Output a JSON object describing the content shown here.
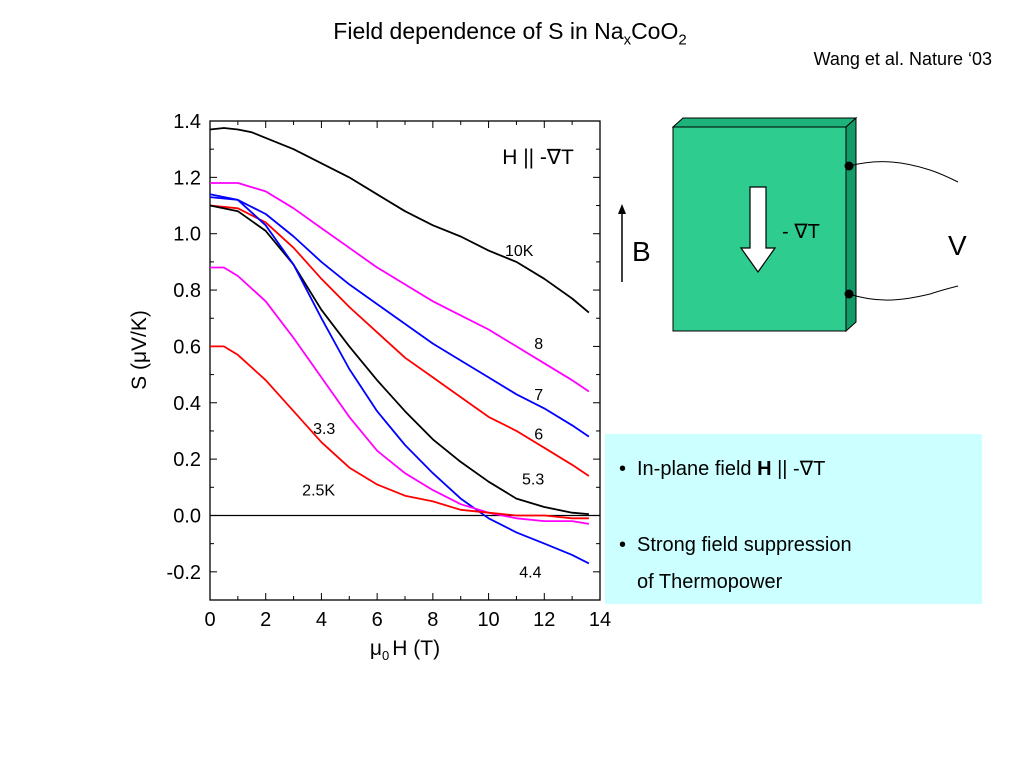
{
  "title": {
    "main": "Field dependence of S in Na",
    "sub_x": "x",
    "mid": "CoO",
    "sub_2": "2"
  },
  "citation": "Wang et al. Nature ‘03",
  "notes": [
    {
      "bullet": "•",
      "text": "In-plane field ",
      "bold": "H",
      "rest": " || -∇T"
    },
    {
      "bullet": "•",
      "text": "Strong field suppression",
      "continuation": "of Thermopower"
    }
  ],
  "diagram": {
    "gradient_label": "- ∇T",
    "field_label": "B",
    "voltage_label": "V",
    "crystal_color": "#2ecc8f",
    "arrow_fill": "#ffffff"
  },
  "chart_data": {
    "type": "line",
    "inset_text": "H || -∇T",
    "xlabel_mu": "μ",
    "xlabel_sub": "0",
    "xlabel_rest": "H (T)",
    "ylabel": "S (μV/K)",
    "xlim": [
      0,
      14
    ],
    "ylim": [
      -0.3,
      1.4
    ],
    "xticks": [
      0,
      2,
      4,
      6,
      8,
      10,
      12,
      14
    ],
    "xtick_labels": [
      "0",
      "2",
      "4",
      "6",
      "8",
      "10",
      "12",
      "14"
    ],
    "yticks": [
      -0.2,
      0.0,
      0.2,
      0.4,
      0.6,
      0.8,
      1.0,
      1.2,
      1.4
    ],
    "ytick_labels": [
      "-0.2",
      "0.0",
      "0.2",
      "0.4",
      "0.6",
      "0.8",
      "1.0",
      "1.2",
      "1.4"
    ],
    "zero_line": 0.0,
    "series": [
      {
        "name": "10K",
        "color": "#000000",
        "label_at": [
          11.1,
          0.92
        ],
        "x": [
          0,
          0.5,
          1,
          1.5,
          2,
          3,
          4,
          5,
          6,
          7,
          8,
          9,
          10,
          11,
          12,
          13,
          13.6
        ],
        "y": [
          1.37,
          1.375,
          1.37,
          1.36,
          1.34,
          1.3,
          1.25,
          1.2,
          1.14,
          1.08,
          1.03,
          0.99,
          0.94,
          0.9,
          0.84,
          0.77,
          0.72
        ]
      },
      {
        "name": "8",
        "color": "#ff00ff",
        "label_at": [
          11.8,
          0.59
        ],
        "x": [
          0,
          1,
          2,
          3,
          4,
          5,
          6,
          7,
          8,
          9,
          10,
          11,
          12,
          13,
          13.6
        ],
        "y": [
          1.18,
          1.18,
          1.15,
          1.09,
          1.02,
          0.95,
          0.88,
          0.82,
          0.76,
          0.71,
          0.66,
          0.6,
          0.54,
          0.48,
          0.44
        ]
      },
      {
        "name": "7",
        "color": "#0000ff",
        "label_at": [
          11.8,
          0.41
        ],
        "x": [
          0,
          1,
          2,
          3,
          4,
          5,
          6,
          7,
          8,
          9,
          10,
          11,
          12,
          13,
          13.6
        ],
        "y": [
          1.13,
          1.12,
          1.07,
          0.99,
          0.9,
          0.82,
          0.75,
          0.68,
          0.61,
          0.55,
          0.49,
          0.43,
          0.38,
          0.32,
          0.28
        ]
      },
      {
        "name": "6",
        "color": "#ff0000",
        "label_at": [
          11.8,
          0.27
        ],
        "x": [
          0,
          1,
          2,
          3,
          4,
          5,
          6,
          7,
          8,
          9,
          10,
          11,
          12,
          13,
          13.6
        ],
        "y": [
          1.1,
          1.09,
          1.04,
          0.95,
          0.84,
          0.74,
          0.65,
          0.56,
          0.49,
          0.42,
          0.35,
          0.3,
          0.24,
          0.18,
          0.14
        ]
      },
      {
        "name": "5.3",
        "color": "#000000",
        "label_at": [
          11.6,
          0.11
        ],
        "x": [
          0,
          1,
          2,
          3,
          4,
          5,
          6,
          7,
          8,
          9,
          10,
          11,
          12,
          13,
          13.6
        ],
        "y": [
          1.1,
          1.08,
          1.01,
          0.89,
          0.73,
          0.6,
          0.48,
          0.37,
          0.27,
          0.19,
          0.12,
          0.06,
          0.03,
          0.01,
          0.005
        ]
      },
      {
        "name": "4.4",
        "color": "#0000ff",
        "label_at": [
          11.5,
          -0.22
        ],
        "x": [
          0,
          1,
          2,
          3,
          4,
          5,
          6,
          7,
          8,
          9,
          10,
          11,
          12,
          13,
          13.6
        ],
        "y": [
          1.14,
          1.12,
          1.03,
          0.89,
          0.7,
          0.52,
          0.37,
          0.25,
          0.15,
          0.06,
          -0.01,
          -0.06,
          -0.1,
          -0.14,
          -0.17
        ]
      },
      {
        "name": "3.3",
        "color": "#ff00ff",
        "label_at": [
          4.1,
          0.29
        ],
        "x": [
          0,
          0.5,
          1,
          2,
          3,
          4,
          5,
          6,
          7,
          8,
          9,
          10,
          11,
          12,
          13,
          13.6
        ],
        "y": [
          0.88,
          0.88,
          0.85,
          0.76,
          0.63,
          0.49,
          0.35,
          0.23,
          0.15,
          0.09,
          0.04,
          0.01,
          -0.01,
          -0.02,
          -0.02,
          -0.03
        ]
      },
      {
        "name": "2.5K",
        "color": "#ff0000",
        "label_at": [
          3.9,
          0.07
        ],
        "x": [
          0,
          0.5,
          1,
          2,
          3,
          4,
          5,
          6,
          7,
          8,
          9,
          10,
          11,
          12,
          13,
          13.6
        ],
        "y": [
          0.6,
          0.6,
          0.57,
          0.48,
          0.37,
          0.26,
          0.17,
          0.11,
          0.07,
          0.05,
          0.02,
          0.01,
          0.0,
          0.0,
          -0.01,
          -0.01
        ]
      }
    ]
  }
}
